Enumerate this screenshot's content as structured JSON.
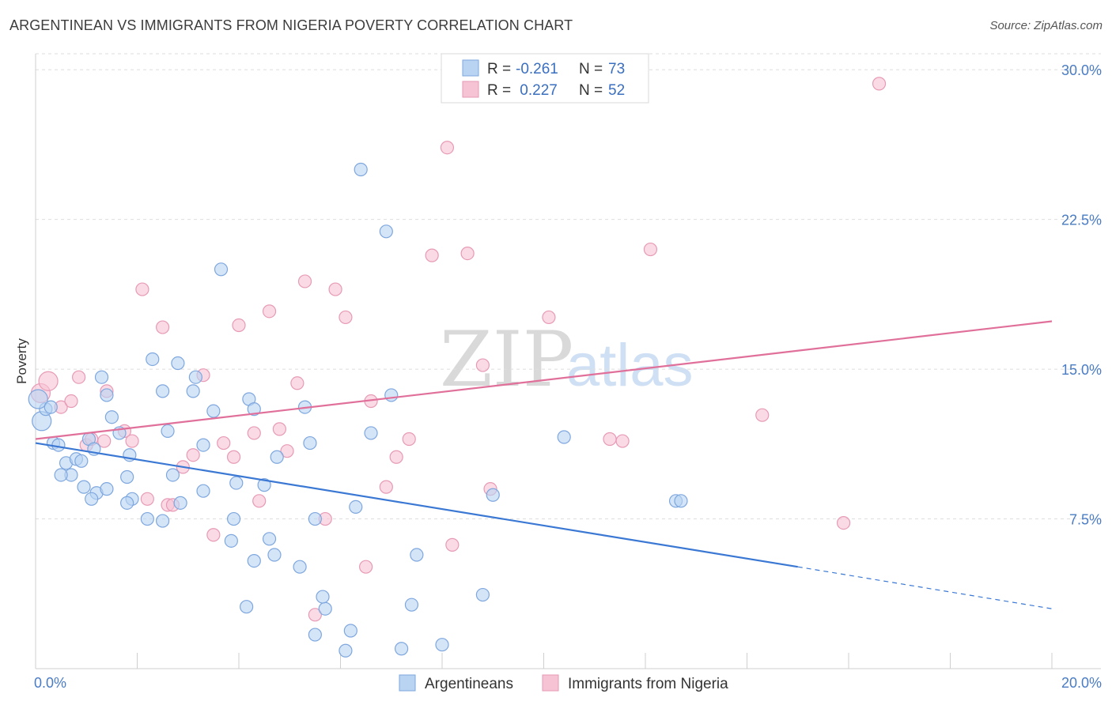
{
  "title": "ARGENTINEAN VS IMMIGRANTS FROM NIGERIA POVERTY CORRELATION CHART",
  "source": "Source: ZipAtlas.com",
  "colors": {
    "blue": "#3a78d4",
    "blue_fill": "#b9d3f3",
    "pink": "#e0709a",
    "pink_fill": "#f6c3d4",
    "axis_label": "#4a7cc4"
  },
  "chart_data": {
    "type": "scatter",
    "title": "ARGENTINEAN VS IMMIGRANTS FROM NIGERIA POVERTY CORRELATION CHART",
    "xlabel": "",
    "ylabel": "Poverty",
    "xlim": [
      0,
      20
    ],
    "ylim": [
      0,
      30.8
    ],
    "x_ticks_labeled": [
      "0.0%",
      "20.0%"
    ],
    "y_ticks": [
      7.5,
      15.0,
      22.5,
      30.0
    ],
    "y_tick_labels": [
      "7.5%",
      "15.0%",
      "22.5%",
      "30.0%"
    ],
    "grid": "horizontal-dashed",
    "legend_top": [
      {
        "r_label": "R =",
        "r_value": "-0.261",
        "n_label": "N =",
        "n_value": "73"
      },
      {
        "r_label": "R =",
        "r_value": " 0.227",
        "n_label": "N =",
        "n_value": "52"
      }
    ],
    "series": [
      {
        "name": "Argentineans",
        "color": "#3a78d4",
        "trend": {
          "x": [
            0,
            15.0,
            20.0
          ],
          "y": [
            11.3,
            5.1,
            3.0
          ],
          "dashed_from": 15.0
        },
        "points": [
          [
            0.12,
            12.4
          ],
          [
            0.2,
            13.0
          ],
          [
            0.35,
            11.3
          ],
          [
            0.45,
            11.2
          ],
          [
            0.6,
            10.3
          ],
          [
            0.7,
            9.7
          ],
          [
            0.5,
            9.7
          ],
          [
            0.8,
            10.5
          ],
          [
            0.9,
            10.4
          ],
          [
            0.95,
            9.1
          ],
          [
            1.05,
            11.5
          ],
          [
            1.15,
            11.0
          ],
          [
            1.2,
            8.8
          ],
          [
            1.1,
            8.5
          ],
          [
            1.4,
            9.0
          ],
          [
            1.4,
            13.7
          ],
          [
            1.5,
            12.6
          ],
          [
            1.3,
            14.6
          ],
          [
            1.65,
            11.8
          ],
          [
            1.8,
            9.6
          ],
          [
            1.85,
            10.7
          ],
          [
            1.9,
            8.5
          ],
          [
            1.8,
            8.3
          ],
          [
            2.2,
            7.5
          ],
          [
            2.3,
            15.5
          ],
          [
            2.5,
            7.4
          ],
          [
            2.5,
            13.9
          ],
          [
            2.6,
            11.9
          ],
          [
            2.7,
            9.7
          ],
          [
            2.85,
            8.3
          ],
          [
            2.8,
            15.3
          ],
          [
            3.1,
            13.9
          ],
          [
            3.15,
            14.6
          ],
          [
            3.3,
            11.2
          ],
          [
            3.3,
            8.9
          ],
          [
            3.5,
            12.9
          ],
          [
            3.65,
            20.0
          ],
          [
            3.9,
            7.5
          ],
          [
            3.85,
            6.4
          ],
          [
            3.95,
            9.3
          ],
          [
            4.15,
            3.1
          ],
          [
            4.2,
            13.5
          ],
          [
            4.3,
            13.0
          ],
          [
            4.3,
            5.4
          ],
          [
            4.5,
            9.2
          ],
          [
            4.6,
            6.5
          ],
          [
            4.7,
            5.7
          ],
          [
            4.75,
            10.6
          ],
          [
            5.2,
            5.1
          ],
          [
            5.3,
            13.1
          ],
          [
            5.4,
            11.3
          ],
          [
            5.5,
            7.5
          ],
          [
            5.5,
            1.7
          ],
          [
            5.7,
            3.0
          ],
          [
            5.65,
            3.6
          ],
          [
            6.1,
            0.9
          ],
          [
            6.2,
            1.9
          ],
          [
            6.3,
            8.1
          ],
          [
            6.4,
            25.0
          ],
          [
            6.6,
            11.8
          ],
          [
            6.9,
            21.9
          ],
          [
            7.0,
            13.7
          ],
          [
            7.2,
            1.0
          ],
          [
            7.4,
            3.2
          ],
          [
            7.5,
            5.7
          ],
          [
            8.0,
            1.2
          ],
          [
            8.8,
            3.7
          ],
          [
            9.0,
            8.7
          ],
          [
            10.4,
            11.6
          ],
          [
            12.6,
            8.4
          ],
          [
            12.7,
            8.4
          ],
          [
            0.05,
            13.5
          ],
          [
            0.3,
            13.1
          ]
        ]
      },
      {
        "name": "Immigrants from Nigeria",
        "color": "#e0709a",
        "trend": {
          "x": [
            0,
            20.0
          ],
          "y": [
            11.5,
            17.4
          ]
        },
        "points": [
          [
            0.1,
            13.8
          ],
          [
            0.25,
            14.4
          ],
          [
            0.5,
            13.1
          ],
          [
            0.7,
            13.4
          ],
          [
            0.85,
            14.6
          ],
          [
            1.0,
            11.2
          ],
          [
            1.1,
            11.5
          ],
          [
            1.35,
            11.4
          ],
          [
            1.4,
            13.9
          ],
          [
            1.75,
            11.9
          ],
          [
            1.9,
            11.4
          ],
          [
            2.1,
            19.0
          ],
          [
            2.2,
            8.5
          ],
          [
            2.5,
            17.1
          ],
          [
            2.6,
            8.2
          ],
          [
            2.7,
            8.2
          ],
          [
            2.9,
            10.1
          ],
          [
            3.1,
            10.7
          ],
          [
            3.3,
            14.7
          ],
          [
            3.5,
            6.7
          ],
          [
            3.7,
            11.3
          ],
          [
            3.9,
            10.6
          ],
          [
            4.0,
            17.2
          ],
          [
            4.3,
            11.8
          ],
          [
            4.4,
            8.4
          ],
          [
            4.6,
            17.9
          ],
          [
            4.8,
            12.0
          ],
          [
            4.95,
            10.9
          ],
          [
            5.15,
            14.3
          ],
          [
            5.3,
            19.4
          ],
          [
            5.5,
            2.7
          ],
          [
            5.7,
            7.5
          ],
          [
            5.9,
            19.0
          ],
          [
            6.1,
            17.6
          ],
          [
            6.5,
            5.1
          ],
          [
            6.6,
            13.4
          ],
          [
            6.9,
            9.1
          ],
          [
            7.1,
            10.6
          ],
          [
            7.35,
            11.5
          ],
          [
            7.8,
            20.7
          ],
          [
            8.1,
            26.1
          ],
          [
            8.2,
            6.2
          ],
          [
            8.5,
            20.8
          ],
          [
            8.8,
            15.2
          ],
          [
            8.95,
            9.0
          ],
          [
            10.1,
            17.6
          ],
          [
            11.3,
            11.5
          ],
          [
            11.55,
            11.4
          ],
          [
            12.1,
            21.0
          ],
          [
            14.3,
            12.7
          ],
          [
            15.9,
            7.3
          ],
          [
            16.6,
            29.3
          ]
        ]
      }
    ]
  },
  "bottom_legend": [
    "Argentineans",
    "Immigrants from Nigeria"
  ],
  "watermark": {
    "zip": "ZIP",
    "atlas": "atlas"
  }
}
